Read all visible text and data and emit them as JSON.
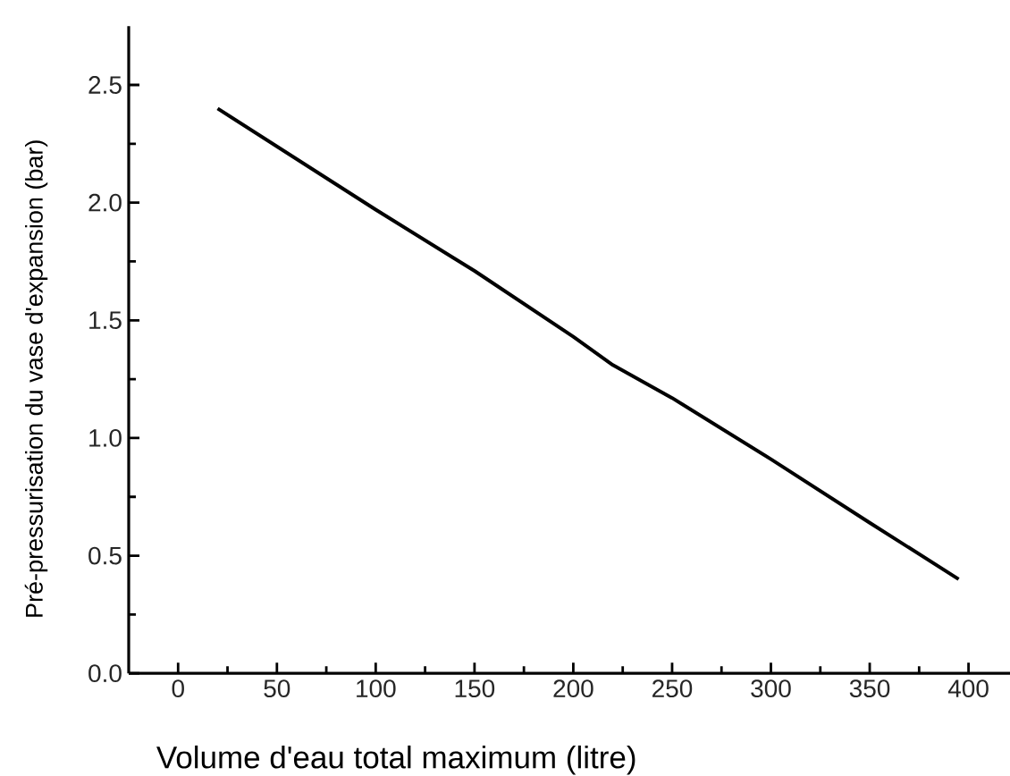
{
  "chart_data": {
    "type": "line",
    "xlabel": "Volume d'eau total maximum (litre)",
    "ylabel": "Pré-pressurisation du vase d'expansion (bar)",
    "x": [
      20,
      100,
      150,
      200,
      220,
      250,
      300,
      350,
      395
    ],
    "series": [
      {
        "color": "#000000",
        "values": [
          2.4,
          1.97,
          1.71,
          1.43,
          1.31,
          1.17,
          0.91,
          0.64,
          0.4
        ]
      }
    ],
    "xlim": [
      -25,
      421
    ],
    "ylim": [
      0,
      2.75
    ],
    "xticks": [
      0,
      {
        "value": 25,
        "label": null
      },
      50,
      {
        "value": 75,
        "label": null
      },
      100,
      {
        "value": 125,
        "label": null
      },
      150,
      {
        "value": 175,
        "label": null
      },
      200,
      {
        "value": 225,
        "label": null
      },
      250,
      {
        "value": 275,
        "label": null
      },
      300,
      {
        "value": 325,
        "label": null
      },
      350,
      {
        "value": 375,
        "label": null
      },
      400
    ],
    "yticks": [
      {
        "value": 0,
        "label": "0.0"
      },
      {
        "value": 0.25,
        "label": null
      },
      {
        "value": 0.5,
        "label": "0.5"
      },
      {
        "value": 0.75,
        "label": null
      },
      {
        "value": 1,
        "label": "1.0"
      },
      {
        "value": 1.25,
        "label": null
      },
      {
        "value": 1.5,
        "label": "1.5"
      },
      {
        "value": 1.75,
        "label": null
      },
      {
        "value": 2,
        "label": "2.0"
      },
      {
        "value": 2.25,
        "label": null
      },
      {
        "value": 2.5,
        "label": "2.5"
      }
    ],
    "marker": "none",
    "line_style": "solid"
  }
}
